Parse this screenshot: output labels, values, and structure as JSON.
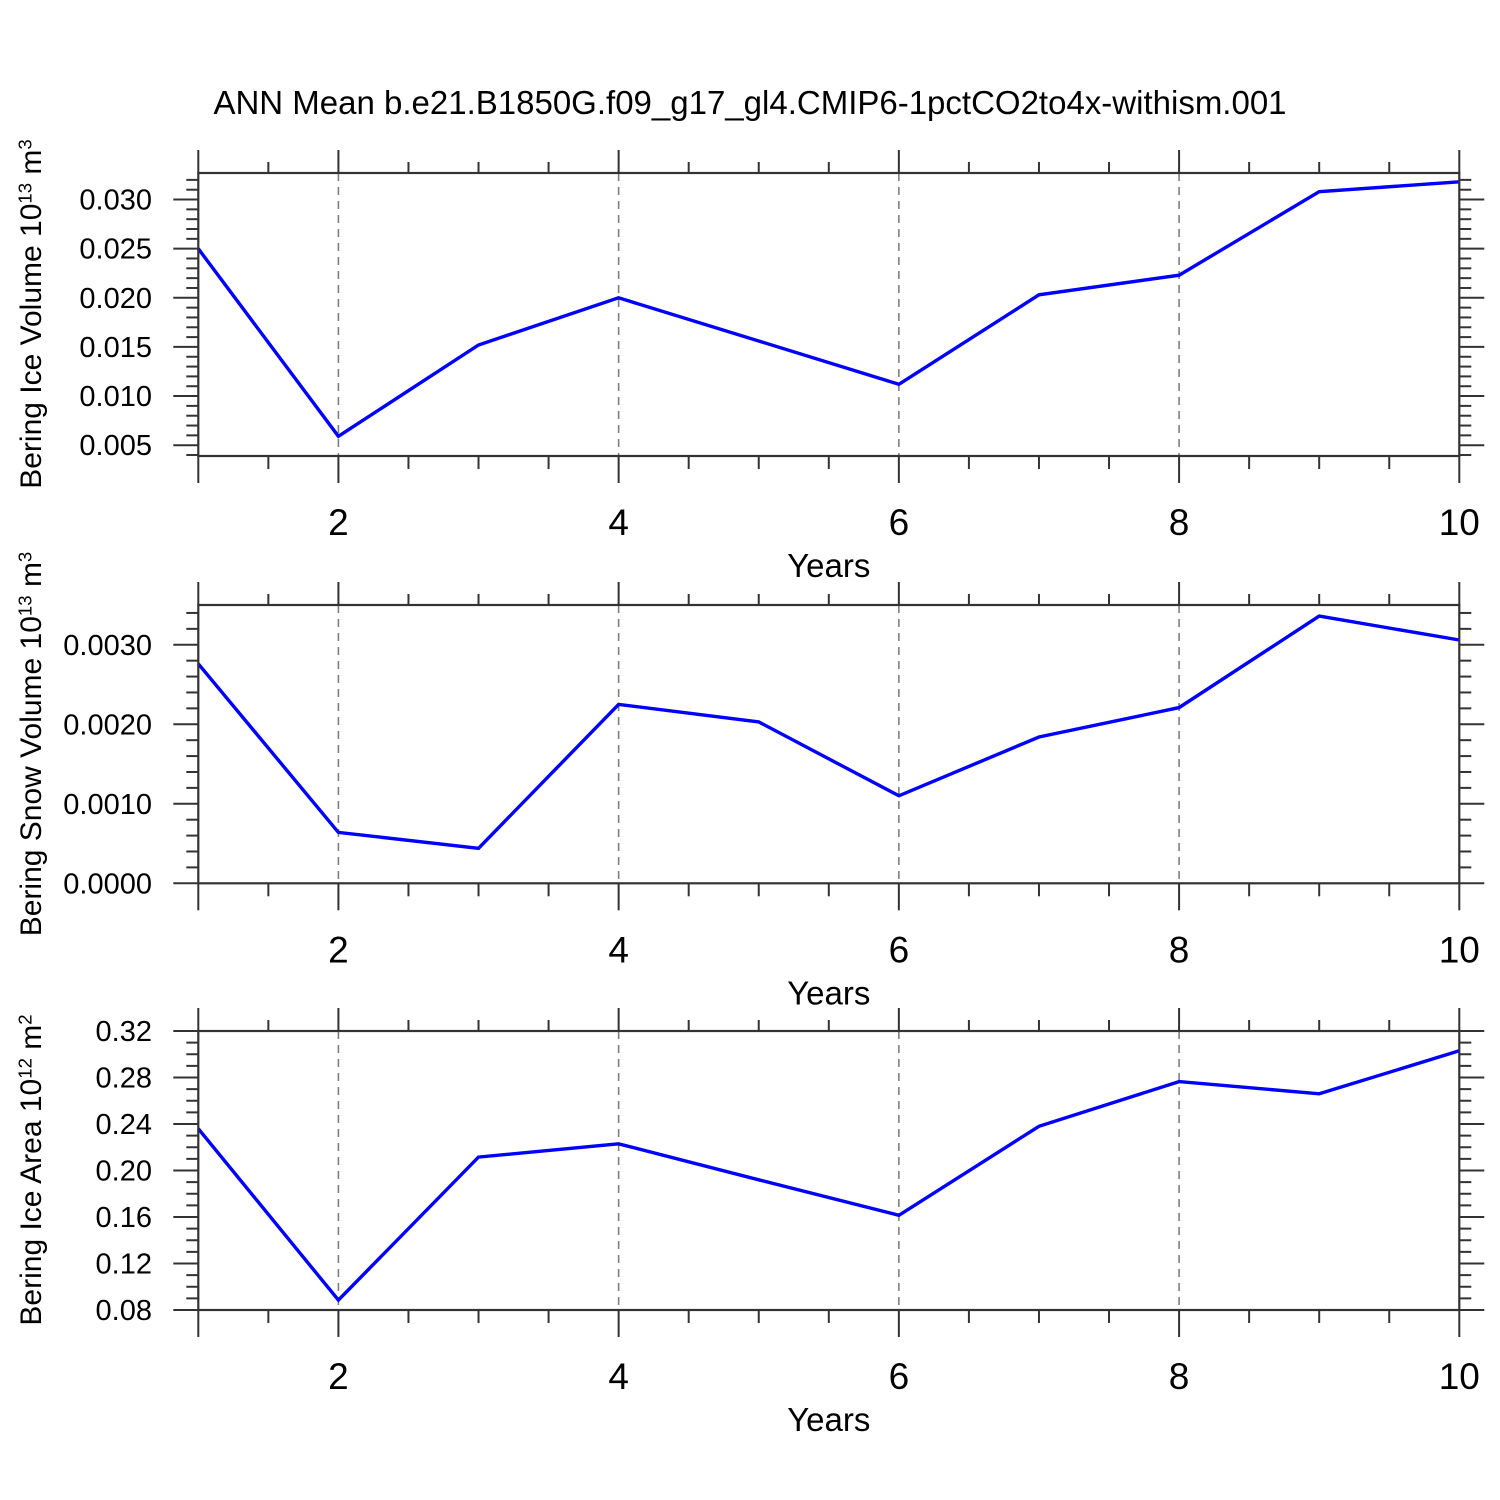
{
  "title": "ANN Mean b.e21.B1850G.f09_g17_gl4.CMIP6-1pctCO2to4x-withism.001",
  "colors": {
    "background": "#ffffff",
    "line": "#0000ff",
    "frame": "#333333",
    "grid": "#7f7f7f",
    "text": "#000000"
  },
  "chart_data": [
    {
      "type": "line",
      "name": "bering-ice-volume",
      "ylabel": {
        "prefix": "Bering Ice Volume 10",
        "exponent": "13",
        "unit": " m",
        "unit_exponent": "3"
      },
      "xlabel": "Years",
      "x": [
        1,
        2,
        3,
        4,
        5,
        6,
        7,
        8,
        9,
        10
      ],
      "values": [
        0.025,
        0.0059,
        0.0152,
        0.02,
        0.0156,
        0.0112,
        0.0203,
        0.0223,
        0.0308,
        0.0318
      ],
      "xlim": [
        1,
        10
      ],
      "ylim": [
        0.0039,
        0.0327
      ],
      "xtick_values": [
        2,
        4,
        6,
        8,
        10
      ],
      "xtick_labels": [
        "2",
        "4",
        "6",
        "8",
        "10"
      ],
      "xtick_minor_step": 0.5,
      "gridline_x": [
        2,
        4,
        6,
        8
      ],
      "ytick_values": [
        0.005,
        0.01,
        0.015,
        0.02,
        0.025,
        0.03
      ],
      "ytick_labels": [
        "0.005",
        "0.010",
        "0.015",
        "0.020",
        "0.025",
        "0.030"
      ],
      "ytick_minor_step": 0.001,
      "line_color": "#0000ff",
      "grid": "vertical-dashed",
      "legend": "none"
    },
    {
      "type": "line",
      "name": "bering-snow-volume",
      "ylabel": {
        "prefix": "Bering Snow Volume 10",
        "exponent": "13",
        "unit": " m",
        "unit_exponent": "3"
      },
      "xlabel": "Years",
      "x": [
        1,
        2,
        3,
        4,
        5,
        6,
        7,
        8,
        9,
        10
      ],
      "values": [
        0.00276,
        0.00064,
        0.00044,
        0.00225,
        0.00203,
        0.0011,
        0.00184,
        0.00221,
        0.00336,
        0.00306
      ],
      "xlim": [
        1,
        10
      ],
      "ylim": [
        0.0,
        0.0035
      ],
      "xtick_values": [
        2,
        4,
        6,
        8,
        10
      ],
      "xtick_labels": [
        "2",
        "4",
        "6",
        "8",
        "10"
      ],
      "xtick_minor_step": 0.5,
      "gridline_x": [
        2,
        4,
        6,
        8
      ],
      "ytick_values": [
        0.0,
        0.001,
        0.002,
        0.003
      ],
      "ytick_labels": [
        "0.0000",
        "0.0010",
        "0.0020",
        "0.0030"
      ],
      "ytick_minor_step": 0.0002,
      "line_color": "#0000ff",
      "grid": "vertical-dashed",
      "legend": "none"
    },
    {
      "type": "line",
      "name": "bering-ice-area",
      "ylabel": {
        "prefix": "Bering Ice Area 10",
        "exponent": "12",
        "unit": " m",
        "unit_exponent": "2"
      },
      "xlabel": "Years",
      "x": [
        1,
        2,
        3,
        4,
        5,
        6,
        7,
        8,
        9,
        10
      ],
      "values": [
        0.236,
        0.0885,
        0.2115,
        0.223,
        0.192,
        0.1615,
        0.238,
        0.2765,
        0.266,
        0.303
      ],
      "xlim": [
        1,
        10
      ],
      "ylim": [
        0.08,
        0.32
      ],
      "xtick_values": [
        2,
        4,
        6,
        8,
        10
      ],
      "xtick_labels": [
        "2",
        "4",
        "6",
        "8",
        "10"
      ],
      "xtick_minor_step": 0.5,
      "gridline_x": [
        2,
        4,
        6,
        8
      ],
      "ytick_values": [
        0.08,
        0.12,
        0.16,
        0.2,
        0.24,
        0.28,
        0.32
      ],
      "ytick_labels": [
        "0.08",
        "0.12",
        "0.16",
        "0.20",
        "0.24",
        "0.28",
        "0.32"
      ],
      "ytick_minor_step": 0.01,
      "line_color": "#0000ff",
      "grid": "vertical-dashed",
      "legend": "none"
    }
  ]
}
